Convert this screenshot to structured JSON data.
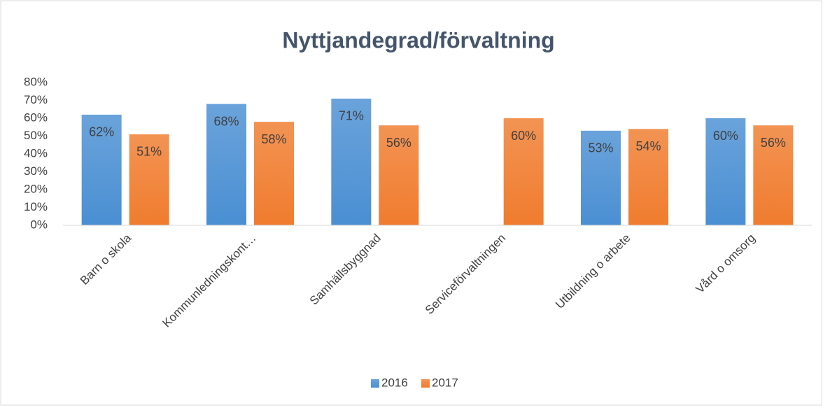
{
  "chart_data": {
    "type": "bar",
    "title": "Nyttjandegrad/förvaltning",
    "categories": [
      "Barn o skola",
      "Kommunledningskont…",
      "Samhällsbyggnad",
      "Serviceförvaltningen",
      "Utbildning o arbete",
      "Vård o omsorg"
    ],
    "series": [
      {
        "name": "2016",
        "color": "#4a8fd3",
        "values": [
          62,
          68,
          71,
          null,
          53,
          60
        ],
        "value_labels": [
          "62%",
          "68%",
          "71%",
          null,
          "53%",
          "60%"
        ]
      },
      {
        "name": "2017",
        "color": "#f07c2e",
        "values": [
          51,
          58,
          56,
          60,
          54,
          56
        ],
        "value_labels": [
          "51%",
          "58%",
          "56%",
          "60%",
          "54%",
          "56%"
        ]
      }
    ],
    "ylim": [
      0,
      80
    ],
    "yticks": [
      {
        "value": 0,
        "label": "0%"
      },
      {
        "value": 10,
        "label": "10%"
      },
      {
        "value": 20,
        "label": "20%"
      },
      {
        "value": 30,
        "label": "30%"
      },
      {
        "value": 40,
        "label": "40%"
      },
      {
        "value": 50,
        "label": "50%"
      },
      {
        "value": 60,
        "label": "60%"
      },
      {
        "value": 70,
        "label": "70%"
      },
      {
        "value": 80,
        "label": "80%"
      }
    ],
    "grid": false,
    "legend": "bottom"
  }
}
